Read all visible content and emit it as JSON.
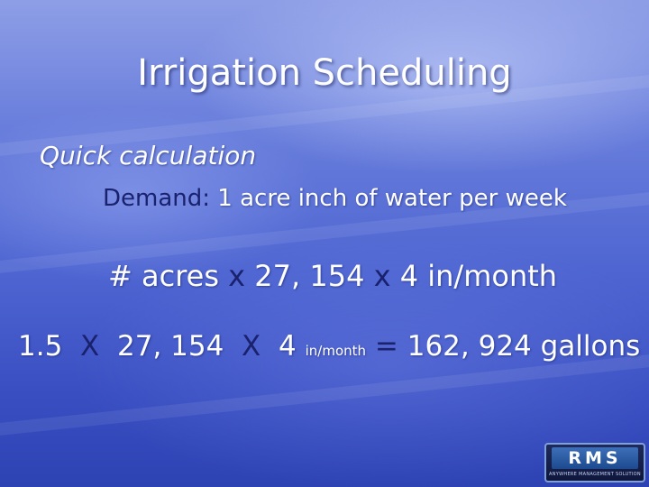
{
  "slide": {
    "title": "Irrigation Scheduling",
    "subtitle": "Quick calculation",
    "demand_label": "Demand:",
    "demand_text": " 1 acre inch of water per week",
    "formula": {
      "p1": "# acres",
      "op1": "x",
      "p2": "27, 154",
      "op2": "x",
      "p3": "4 in/month"
    },
    "calc": {
      "acres": "1.5",
      "op1": "X",
      "factor": "27, 154",
      "op2": "X",
      "months": "4",
      "unit": "in/month",
      "eq": "=",
      "result": "162, 924 gallons"
    }
  },
  "logo": {
    "name": "RMS",
    "tagline": "ANYWHERE MANAGEMENT SOLUTION"
  }
}
